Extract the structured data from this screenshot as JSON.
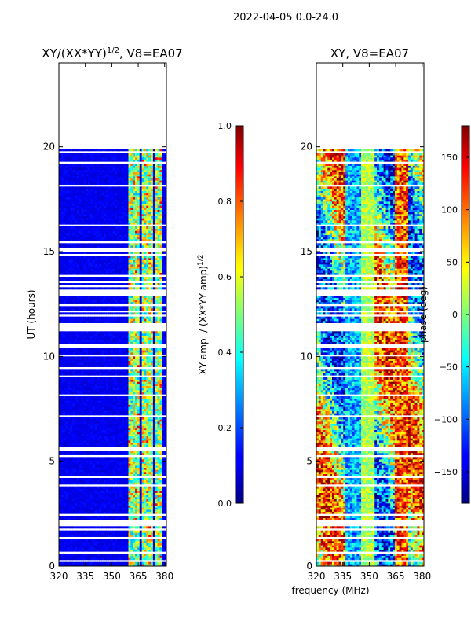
{
  "figure": {
    "suptitle": "2022-04-05 0.0-24.0",
    "shared_xlabel": "frequency (MHz)"
  },
  "chart_data": [
    {
      "type": "heatmap",
      "title": "XY/(XX*YY)",
      "title_exponent": "1/2",
      "title_suffix": ", V8=EA07",
      "xlabel": "",
      "ylabel": "UT (hours)",
      "xlim": [
        320,
        381
      ],
      "ylim": [
        0,
        24
      ],
      "xticks": [
        320,
        335,
        350,
        365,
        380
      ],
      "yticks": [
        0,
        5,
        10,
        15,
        20
      ],
      "data_extent_hours": [
        0,
        20
      ],
      "bright_band_mhz": [
        [
          359,
          365
        ],
        [
          367,
          373
        ],
        [
          374,
          378
        ]
      ],
      "colorbar": {
        "label": "XY amp. / (XX*YY amp)",
        "label_exponent": "1/2",
        "range": [
          0.0,
          1.0
        ],
        "ticks": [
          "0.0",
          "0.2",
          "0.4",
          "0.6",
          "0.8",
          "1.0"
        ]
      }
    },
    {
      "type": "heatmap",
      "title": "XY, V8=EA07",
      "xlabel": "frequency (MHz)",
      "ylabel": "",
      "xlim": [
        320,
        381
      ],
      "ylim": [
        0,
        24
      ],
      "xticks": [
        320,
        335,
        350,
        365,
        380
      ],
      "yticks": [
        0,
        5,
        10,
        15,
        20
      ],
      "data_extent_hours": [
        0,
        20
      ],
      "colorbar": {
        "label": "phase (deg)",
        "range": [
          -180,
          180
        ],
        "ticks": [
          "150",
          "100",
          "50",
          "0",
          "−50",
          "−100",
          "−150"
        ]
      }
    }
  ],
  "colors": {
    "axis": "#000000",
    "background": "#ffffff",
    "gap": "#ffffff"
  }
}
